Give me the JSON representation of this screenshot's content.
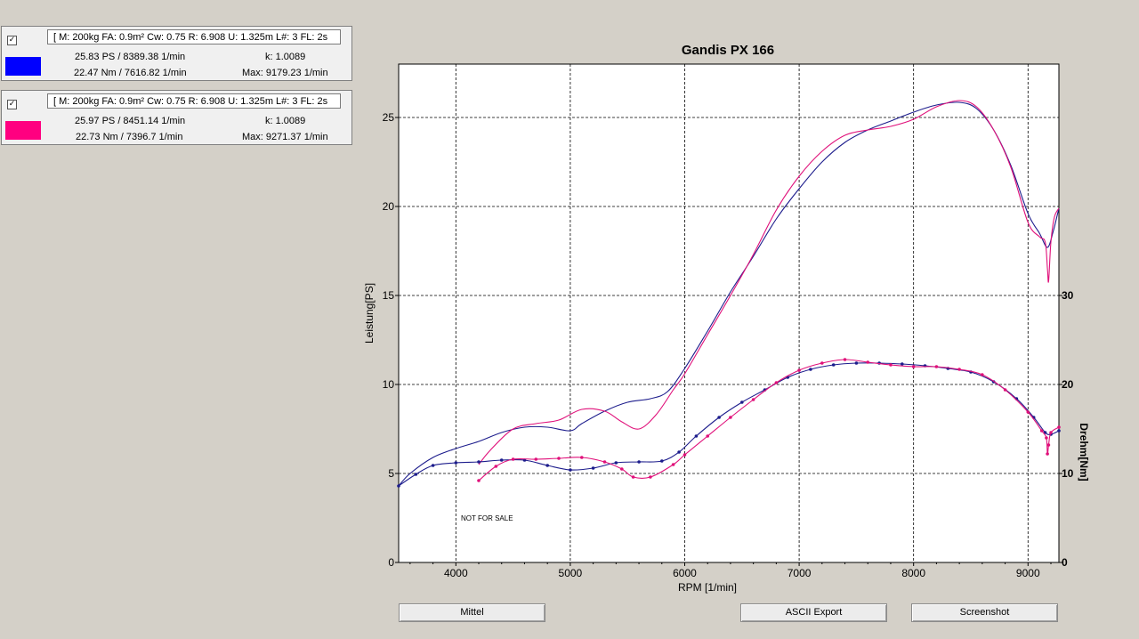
{
  "runs": [
    {
      "checkbox": "✓",
      "params": "[ M: 200kg  FA: 0.9m²  Cw: 0.75  R: 6.908  U: 1.325m  L#: 3 FL: 2s",
      "power_peak": "25.83 PS / 8389.38 1/min",
      "k": "k: 1.0089",
      "torque_peak": "22.47 Nm / 7616.82 1/min",
      "max": "Max: 9179.23 1/min",
      "color": "#0000ff"
    },
    {
      "checkbox": "✓",
      "params": "[ M: 200kg  FA: 0.9m²  Cw: 0.75  R: 6.908  U: 1.325m  L#: 3 FL: 2s",
      "power_peak": "25.97 PS / 8451.14 1/min",
      "k": "k: 1.0089",
      "torque_peak": "22.73 Nm / 7396.7 1/min",
      "max": "Max: 9271.37 1/min",
      "color": "#ff0080"
    }
  ],
  "buttons": {
    "mittel": "Mittel",
    "ascii": "ASCII Export",
    "screenshot": "Screenshot"
  },
  "chart_data": {
    "type": "line",
    "title": "Gandis PX 166",
    "xlabel": "RPM [1/min]",
    "ylabel": "Leistung[PS]",
    "y2label": "Drehm[Nm]",
    "xlim": [
      3500,
      9270
    ],
    "ylim": [
      0,
      28
    ],
    "y2lim": [
      0,
      56
    ],
    "x_ticks": [
      4000,
      5000,
      6000,
      7000,
      8000,
      9000
    ],
    "y_ticks": [
      0,
      5,
      10,
      15,
      20,
      25
    ],
    "y2_ticks": [
      0,
      10,
      20,
      30
    ],
    "grid": true,
    "annotation": "NOT FOR SALE",
    "series": [
      {
        "axis": "power",
        "color": "#1c1c8c",
        "points": [
          [
            3500,
            4.3
          ],
          [
            3600,
            5.0
          ],
          [
            3800,
            5.9
          ],
          [
            4000,
            6.4
          ],
          [
            4200,
            6.8
          ],
          [
            4400,
            7.3
          ],
          [
            4600,
            7.6
          ],
          [
            4800,
            7.6
          ],
          [
            5000,
            7.4
          ],
          [
            5100,
            7.8
          ],
          [
            5300,
            8.5
          ],
          [
            5500,
            9.0
          ],
          [
            5700,
            9.2
          ],
          [
            5850,
            9.6
          ],
          [
            6000,
            10.9
          ],
          [
            6200,
            13.0
          ],
          [
            6400,
            15.2
          ],
          [
            6600,
            17.2
          ],
          [
            6800,
            19.3
          ],
          [
            7000,
            21.0
          ],
          [
            7200,
            22.5
          ],
          [
            7400,
            23.6
          ],
          [
            7600,
            24.3
          ],
          [
            7800,
            24.8
          ],
          [
            8000,
            25.3
          ],
          [
            8200,
            25.7
          ],
          [
            8400,
            25.85
          ],
          [
            8550,
            25.5
          ],
          [
            8700,
            24.3
          ],
          [
            8850,
            22.3
          ],
          [
            9000,
            19.6
          ],
          [
            9100,
            18.5
          ],
          [
            9170,
            17.7
          ],
          [
            9220,
            18.6
          ],
          [
            9270,
            19.9
          ]
        ]
      },
      {
        "axis": "power",
        "color": "#e0107a",
        "points": [
          [
            4200,
            5.5
          ],
          [
            4300,
            6.3
          ],
          [
            4500,
            7.5
          ],
          [
            4700,
            7.8
          ],
          [
            4900,
            8.0
          ],
          [
            5100,
            8.6
          ],
          [
            5300,
            8.5
          ],
          [
            5450,
            7.9
          ],
          [
            5600,
            7.5
          ],
          [
            5750,
            8.3
          ],
          [
            5900,
            9.7
          ],
          [
            6000,
            10.6
          ],
          [
            6200,
            12.8
          ],
          [
            6400,
            15.0
          ],
          [
            6600,
            17.3
          ],
          [
            6800,
            19.8
          ],
          [
            7000,
            21.7
          ],
          [
            7200,
            23.1
          ],
          [
            7400,
            24.0
          ],
          [
            7600,
            24.3
          ],
          [
            7800,
            24.5
          ],
          [
            8000,
            24.9
          ],
          [
            8200,
            25.6
          ],
          [
            8400,
            25.95
          ],
          [
            8550,
            25.6
          ],
          [
            8700,
            24.3
          ],
          [
            8850,
            22.2
          ],
          [
            9000,
            19.1
          ],
          [
            9100,
            18.3
          ],
          [
            9150,
            18.0
          ],
          [
            9170,
            16.5
          ],
          [
            9180,
            15.8
          ],
          [
            9200,
            18.0
          ],
          [
            9230,
            19.4
          ],
          [
            9270,
            19.9
          ]
        ]
      },
      {
        "axis": "torque",
        "color": "#1c1c8c",
        "points": [
          [
            3500,
            8.6
          ],
          [
            3650,
            9.9
          ],
          [
            3800,
            10.9
          ],
          [
            4000,
            11.2
          ],
          [
            4200,
            11.3
          ],
          [
            4400,
            11.5
          ],
          [
            4600,
            11.5
          ],
          [
            4800,
            10.9
          ],
          [
            5000,
            10.4
          ],
          [
            5200,
            10.6
          ],
          [
            5400,
            11.2
          ],
          [
            5600,
            11.3
          ],
          [
            5800,
            11.4
          ],
          [
            5950,
            12.4
          ],
          [
            6100,
            14.2
          ],
          [
            6300,
            16.3
          ],
          [
            6500,
            18.0
          ],
          [
            6700,
            19.4
          ],
          [
            6900,
            20.8
          ],
          [
            7100,
            21.7
          ],
          [
            7300,
            22.2
          ],
          [
            7500,
            22.4
          ],
          [
            7700,
            22.4
          ],
          [
            7900,
            22.3
          ],
          [
            8100,
            22.1
          ],
          [
            8300,
            21.8
          ],
          [
            8500,
            21.4
          ],
          [
            8700,
            20.3
          ],
          [
            8900,
            18.4
          ],
          [
            9050,
            16.3
          ],
          [
            9150,
            14.6
          ],
          [
            9200,
            14.4
          ],
          [
            9270,
            14.8
          ]
        ]
      },
      {
        "axis": "torque",
        "color": "#e0107a",
        "points": [
          [
            4200,
            9.2
          ],
          [
            4350,
            10.8
          ],
          [
            4500,
            11.6
          ],
          [
            4700,
            11.6
          ],
          [
            4900,
            11.7
          ],
          [
            5100,
            11.8
          ],
          [
            5300,
            11.3
          ],
          [
            5450,
            10.5
          ],
          [
            5550,
            9.6
          ],
          [
            5700,
            9.6
          ],
          [
            5900,
            11.0
          ],
          [
            6000,
            12.1
          ],
          [
            6200,
            14.2
          ],
          [
            6400,
            16.3
          ],
          [
            6600,
            18.3
          ],
          [
            6800,
            20.2
          ],
          [
            7000,
            21.6
          ],
          [
            7200,
            22.4
          ],
          [
            7400,
            22.8
          ],
          [
            7600,
            22.5
          ],
          [
            7800,
            22.2
          ],
          [
            8000,
            22.0
          ],
          [
            8200,
            22.0
          ],
          [
            8400,
            21.7
          ],
          [
            8600,
            21.1
          ],
          [
            8800,
            19.4
          ],
          [
            9000,
            16.9
          ],
          [
            9120,
            14.8
          ],
          [
            9160,
            14.0
          ],
          [
            9170,
            12.2
          ],
          [
            9180,
            13.2
          ],
          [
            9200,
            14.6
          ],
          [
            9270,
            15.2
          ]
        ]
      }
    ]
  }
}
